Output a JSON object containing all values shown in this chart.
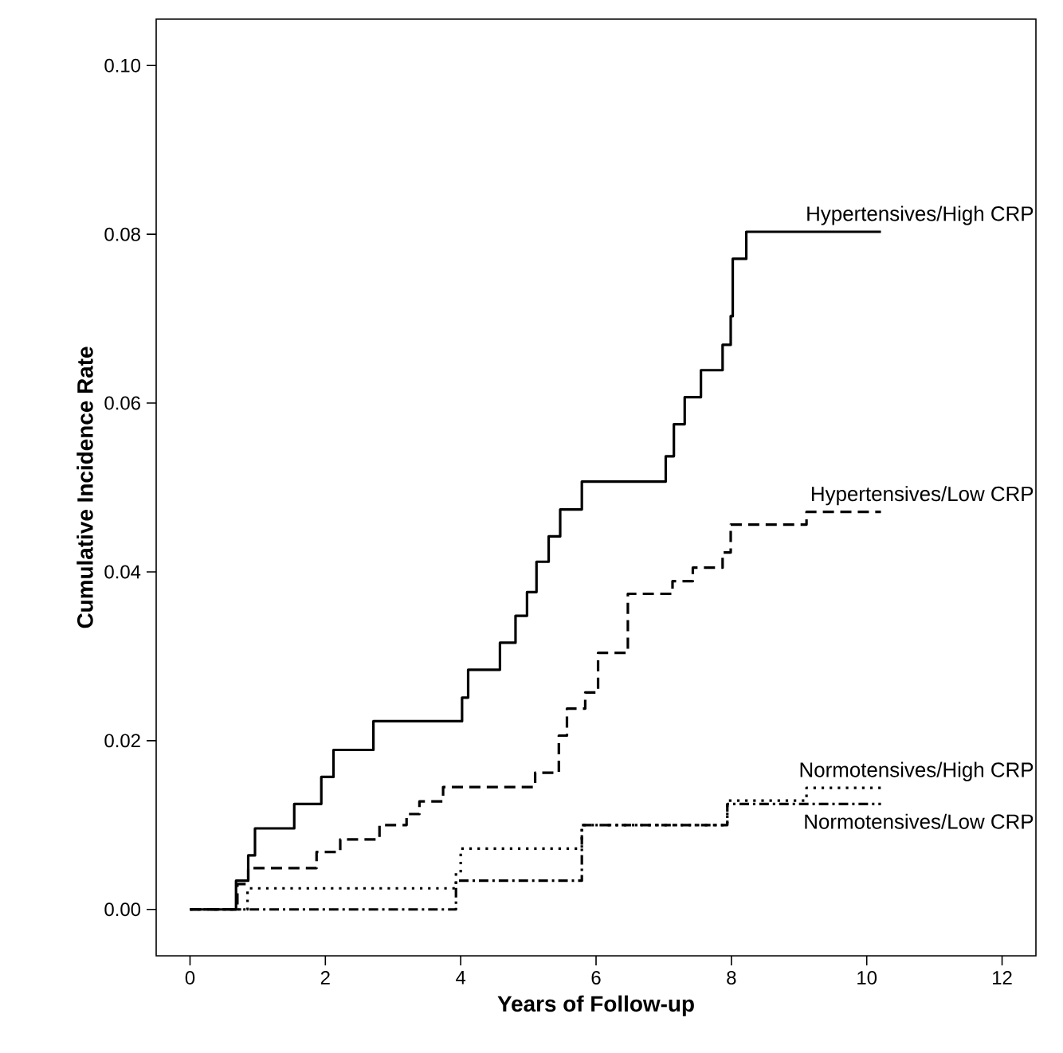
{
  "chart_data": {
    "type": "step",
    "xlabel": "Years of Follow-up",
    "ylabel": "Cumulative Incidence Rate",
    "xlim": [
      -0.5,
      12.5
    ],
    "ylim": [
      -0.0055,
      0.1055
    ],
    "xticks": [
      0,
      2,
      4,
      6,
      8,
      10,
      12
    ],
    "yticks": [
      {
        "value": 0,
        "label": "0.00"
      },
      {
        "value": 0.02,
        "label": "0.02"
      },
      {
        "value": 0.04,
        "label": "0.04"
      },
      {
        "value": 0.06,
        "label": "0.06"
      },
      {
        "value": 0.08,
        "label": "0.08"
      },
      {
        "value": 0.1,
        "label": "0.10"
      }
    ],
    "grid": false,
    "marker": "none",
    "series": [
      {
        "name": "Hypertensives/High CRP",
        "color": "#000000",
        "line_style": "solid",
        "x": [
          0,
          0.68,
          0.86,
          0.96,
          1.54,
          1.94,
          2.12,
          2.71,
          4.02,
          4.11,
          4.58,
          4.81,
          4.98,
          5.12,
          5.3,
          5.47,
          5.79,
          7.03,
          7.15,
          7.31,
          7.55,
          7.87,
          7.99,
          8.02,
          8.22,
          10.21
        ],
        "values": [
          0,
          0.0034,
          0.0064,
          0.0096,
          0.0125,
          0.0157,
          0.0189,
          0.0223,
          0.0251,
          0.0284,
          0.0316,
          0.0348,
          0.0376,
          0.0412,
          0.0442,
          0.0474,
          0.0507,
          0.0537,
          0.0575,
          0.0607,
          0.0639,
          0.0669,
          0.0703,
          0.0771,
          0.0803,
          0.0803
        ]
      },
      {
        "name": "Hypertensives/Low CRP",
        "color": "#000000",
        "line_style": "dashed",
        "x": [
          0,
          0.7,
          0.86,
          1.87,
          2.22,
          2.8,
          3.2,
          3.39,
          3.74,
          5.1,
          5.45,
          5.57,
          5.84,
          6.03,
          6.47,
          7.13,
          7.43,
          7.87,
          7.99,
          9.11,
          10.21
        ],
        "values": [
          0,
          0.003,
          0.0049,
          0.0068,
          0.0083,
          0.01,
          0.0113,
          0.0128,
          0.0145,
          0.0162,
          0.0206,
          0.0238,
          0.0257,
          0.0304,
          0.0374,
          0.0389,
          0.0405,
          0.0423,
          0.0456,
          0.0471,
          0.0471
        ]
      },
      {
        "name": "Normotensives/High CRP",
        "color": "#000000",
        "line_style": "dotted",
        "x": [
          0,
          0.85,
          3.93,
          4.0,
          5.79,
          7.94,
          9.11,
          10.21
        ],
        "values": [
          0,
          0.0025,
          0.0043,
          0.0072,
          0.01,
          0.0129,
          0.0144,
          0.0144
        ]
      },
      {
        "name": "Normotensives/Low CRP",
        "color": "#000000",
        "line_style": "dashdot",
        "x": [
          0,
          3.93,
          5.79,
          7.94,
          10.21
        ],
        "values": [
          0,
          0.0034,
          0.01,
          0.0125,
          0.0125
        ]
      }
    ]
  }
}
